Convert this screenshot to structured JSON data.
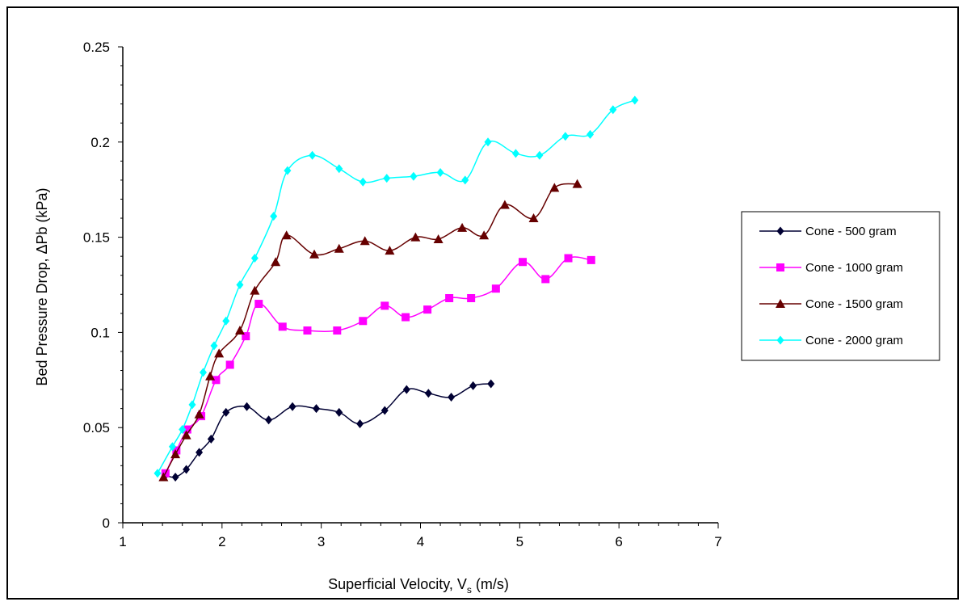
{
  "chart_data": {
    "type": "line",
    "title": "",
    "xlabel": "Superficial Velocity, V",
    "xlabel_sub": "s",
    "xlabel_unit": " (m/s)",
    "ylabel": "Bed Pressure Drop, ΔPb (kPa)",
    "xlim": [
      1,
      7
    ],
    "ylim": [
      0,
      0.25
    ],
    "xticks": [
      "1",
      "2",
      "3",
      "4",
      "5",
      "6",
      "7"
    ],
    "yticks": [
      "0",
      "0.05",
      "0.1",
      "0.15",
      "0.2",
      "0.25"
    ],
    "grid": false,
    "legend_position": "right",
    "series": [
      {
        "name": "Cone - 500 gram",
        "color": "#000033",
        "marker": "diamond",
        "points": [
          [
            1.43,
            0.025
          ],
          [
            1.53,
            0.024
          ],
          [
            1.64,
            0.028
          ],
          [
            1.77,
            0.037
          ],
          [
            1.89,
            0.044
          ],
          [
            2.04,
            0.058
          ],
          [
            2.25,
            0.061
          ],
          [
            2.47,
            0.054
          ],
          [
            2.71,
            0.061
          ],
          [
            2.95,
            0.06
          ],
          [
            3.18,
            0.058
          ],
          [
            3.39,
            0.052
          ],
          [
            3.64,
            0.059
          ],
          [
            3.86,
            0.07
          ],
          [
            4.08,
            0.068
          ],
          [
            4.31,
            0.066
          ],
          [
            4.53,
            0.072
          ],
          [
            4.71,
            0.073
          ]
        ]
      },
      {
        "name": "Cone - 1000 gram",
        "color": "#ff00ff",
        "marker": "square",
        "points": [
          [
            1.43,
            0.026
          ],
          [
            1.54,
            0.038
          ],
          [
            1.65,
            0.049
          ],
          [
            1.79,
            0.056
          ],
          [
            1.94,
            0.075
          ],
          [
            2.08,
            0.083
          ],
          [
            2.24,
            0.098
          ],
          [
            2.37,
            0.115
          ],
          [
            2.61,
            0.103
          ],
          [
            2.86,
            0.101
          ],
          [
            3.16,
            0.101
          ],
          [
            3.42,
            0.106
          ],
          [
            3.64,
            0.114
          ],
          [
            3.85,
            0.108
          ],
          [
            4.07,
            0.112
          ],
          [
            4.29,
            0.118
          ],
          [
            4.51,
            0.118
          ],
          [
            4.76,
            0.123
          ],
          [
            5.03,
            0.137
          ],
          [
            5.26,
            0.128
          ],
          [
            5.49,
            0.139
          ],
          [
            5.72,
            0.138
          ]
        ]
      },
      {
        "name": "Cone - 1500 gram",
        "color": "#660000",
        "marker": "triangle",
        "points": [
          [
            1.41,
            0.024
          ],
          [
            1.53,
            0.036
          ],
          [
            1.64,
            0.046
          ],
          [
            1.77,
            0.057
          ],
          [
            1.88,
            0.077
          ],
          [
            1.97,
            0.089
          ],
          [
            2.18,
            0.101
          ],
          [
            2.33,
            0.122
          ],
          [
            2.54,
            0.137
          ],
          [
            2.65,
            0.151
          ],
          [
            2.93,
            0.141
          ],
          [
            3.18,
            0.144
          ],
          [
            3.44,
            0.148
          ],
          [
            3.69,
            0.143
          ],
          [
            3.95,
            0.15
          ],
          [
            4.18,
            0.149
          ],
          [
            4.42,
            0.155
          ],
          [
            4.64,
            0.151
          ],
          [
            4.85,
            0.167
          ],
          [
            5.14,
            0.16
          ],
          [
            5.35,
            0.176
          ],
          [
            5.58,
            0.178
          ]
        ]
      },
      {
        "name": "Cone - 2000 gram",
        "color": "#00ffff",
        "marker": "diamond",
        "points": [
          [
            1.35,
            0.026
          ],
          [
            1.5,
            0.04
          ],
          [
            1.6,
            0.049
          ],
          [
            1.7,
            0.062
          ],
          [
            1.81,
            0.079
          ],
          [
            1.92,
            0.093
          ],
          [
            2.04,
            0.106
          ],
          [
            2.18,
            0.125
          ],
          [
            2.33,
            0.139
          ],
          [
            2.52,
            0.161
          ],
          [
            2.66,
            0.185
          ],
          [
            2.91,
            0.193
          ],
          [
            3.18,
            0.186
          ],
          [
            3.42,
            0.179
          ],
          [
            3.66,
            0.181
          ],
          [
            3.93,
            0.182
          ],
          [
            4.2,
            0.184
          ],
          [
            4.45,
            0.18
          ],
          [
            4.68,
            0.2
          ],
          [
            4.96,
            0.194
          ],
          [
            5.2,
            0.193
          ],
          [
            5.46,
            0.203
          ],
          [
            5.71,
            0.204
          ],
          [
            5.94,
            0.217
          ],
          [
            6.16,
            0.222
          ]
        ]
      }
    ]
  }
}
